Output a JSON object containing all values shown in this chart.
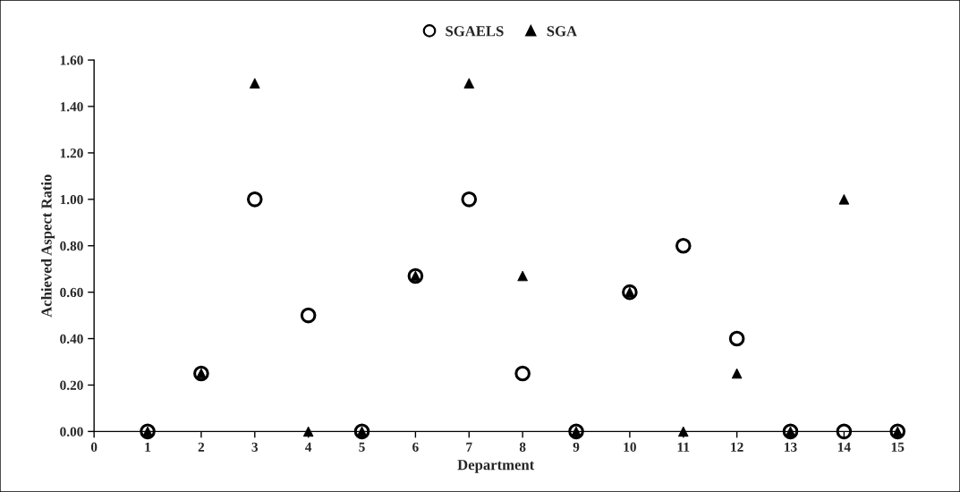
{
  "chart_data": {
    "type": "scatter",
    "xlabel": "Department",
    "ylabel": "Achieved Aspect Ratio",
    "x": [
      1,
      2,
      3,
      4,
      5,
      6,
      7,
      8,
      9,
      10,
      11,
      12,
      13,
      14,
      15
    ],
    "series": [
      {
        "name": "SGAELS",
        "color": "#000000",
        "marker": "circle",
        "values": [
          0,
          0.25,
          1.0,
          0.5,
          0,
          0.67,
          1.0,
          0.25,
          0,
          0.6,
          0.8,
          0.4,
          0,
          0,
          0
        ]
      },
      {
        "name": "SGA",
        "color": "#000000",
        "marker": "triangle",
        "values": [
          0,
          0.25,
          1.5,
          0,
          0,
          0.67,
          1.5,
          0.67,
          0,
          0.6,
          0,
          0.25,
          0,
          1.0,
          0
        ]
      }
    ],
    "xlim": [
      0,
      15
    ],
    "xticks": [
      0,
      1,
      2,
      3,
      4,
      5,
      6,
      7,
      8,
      9,
      10,
      11,
      12,
      13,
      14,
      15
    ],
    "ylim": [
      0,
      1.6
    ],
    "yticks": [
      {
        "value": 0,
        "label": "0.00"
      },
      {
        "value": 0.2,
        "label": "0.20"
      },
      {
        "value": 0.4,
        "label": "0.40"
      },
      {
        "value": 0.6,
        "label": "0.60"
      },
      {
        "value": 0.8,
        "label": "0.80"
      },
      {
        "value": 1.0,
        "label": "1.00"
      },
      {
        "value": 1.2,
        "label": "1.20"
      },
      {
        "value": 1.4,
        "label": "1.40"
      },
      {
        "value": 1.6,
        "label": "1.60"
      }
    ],
    "grid": false,
    "legend": "top"
  }
}
